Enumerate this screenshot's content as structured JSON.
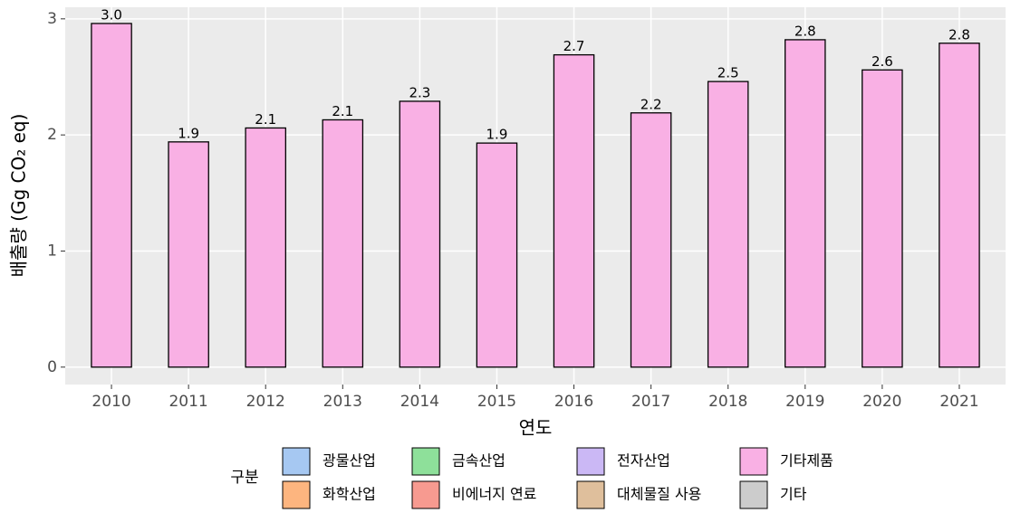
{
  "chart_data": {
    "type": "bar",
    "x_label": "연도",
    "y_label": "배출량 (Gg CO₂ eq)",
    "categories": [
      "2010",
      "2011",
      "2012",
      "2013",
      "2014",
      "2015",
      "2016",
      "2017",
      "2018",
      "2019",
      "2020",
      "2021"
    ],
    "values": [
      2.96,
      1.94,
      2.06,
      2.13,
      2.29,
      1.93,
      2.69,
      2.19,
      2.46,
      2.82,
      2.56,
      2.79
    ],
    "value_labels": [
      "3.0",
      "1.9",
      "2.1",
      "2.1",
      "2.3",
      "1.9",
      "2.7",
      "2.2",
      "2.5",
      "2.8",
      "2.6",
      "2.8"
    ],
    "color": "#f9b0e4",
    "ylim": [
      -0.15,
      3.1
    ],
    "yticks": [
      0,
      1,
      2,
      3
    ],
    "grid": true,
    "legend_title": "구분",
    "legend": [
      {
        "name": "광물산업",
        "color": "#a6c8f2"
      },
      {
        "name": "금속산업",
        "color": "#8ee09a"
      },
      {
        "name": "전자산업",
        "color": "#cbb8f5"
      },
      {
        "name": "기타제품",
        "color": "#f9b0e4"
      },
      {
        "name": "화학산업",
        "color": "#fdb57f"
      },
      {
        "name": "비에너지 연료",
        "color": "#f79a90"
      },
      {
        "name": "대체물질 사용",
        "color": "#dfbf9c"
      },
      {
        "name": "기타",
        "color": "#cccccc"
      }
    ]
  }
}
